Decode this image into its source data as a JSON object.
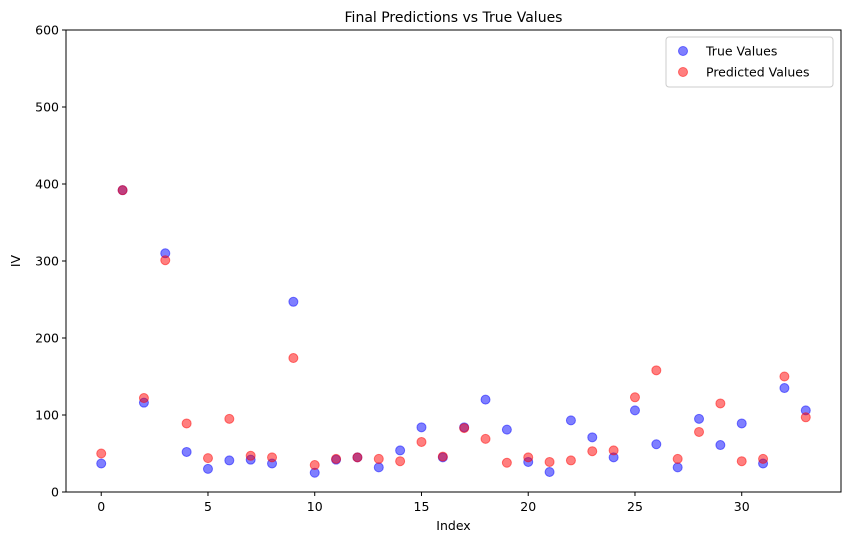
{
  "chart_data": {
    "type": "scatter",
    "title": "Final Predictions vs True Values",
    "xlabel": "Index",
    "ylabel": "IV",
    "xlim": [
      -1.65,
      34.65
    ],
    "ylim": [
      0,
      600
    ],
    "xticks": [
      0,
      5,
      10,
      15,
      20,
      25,
      30
    ],
    "yticks": [
      0,
      100,
      200,
      300,
      400,
      500,
      600
    ],
    "grid": false,
    "legend_position": "top-right",
    "series": [
      {
        "name": "True Values",
        "color": "#0000ff",
        "x": [
          0,
          1,
          2,
          3,
          4,
          5,
          6,
          7,
          8,
          9,
          10,
          11,
          12,
          13,
          14,
          15,
          16,
          17,
          18,
          19,
          20,
          21,
          22,
          23,
          24,
          25,
          26,
          27,
          28,
          29,
          30,
          31,
          32,
          33
        ],
        "y": [
          37,
          392,
          116,
          310,
          52,
          30,
          41,
          42,
          37,
          247,
          25,
          42,
          45,
          32,
          54,
          84,
          45,
          84,
          120,
          81,
          39,
          26,
          93,
          71,
          45,
          106,
          62,
          32,
          95,
          61,
          89,
          37,
          135,
          106
        ]
      },
      {
        "name": "Predicted Values",
        "color": "#ff0000",
        "x": [
          0,
          1,
          2,
          3,
          4,
          5,
          6,
          7,
          8,
          9,
          10,
          11,
          12,
          13,
          14,
          15,
          16,
          17,
          18,
          19,
          20,
          21,
          22,
          23,
          24,
          25,
          26,
          27,
          28,
          29,
          30,
          31,
          32,
          33
        ],
        "y": [
          50,
          392,
          122,
          301,
          89,
          44,
          95,
          47,
          45,
          174,
          35,
          43,
          45,
          43,
          40,
          65,
          46,
          83,
          69,
          38,
          45,
          39,
          41,
          53,
          54,
          123,
          158,
          43,
          78,
          115,
          40,
          43,
          150,
          97
        ]
      }
    ]
  }
}
